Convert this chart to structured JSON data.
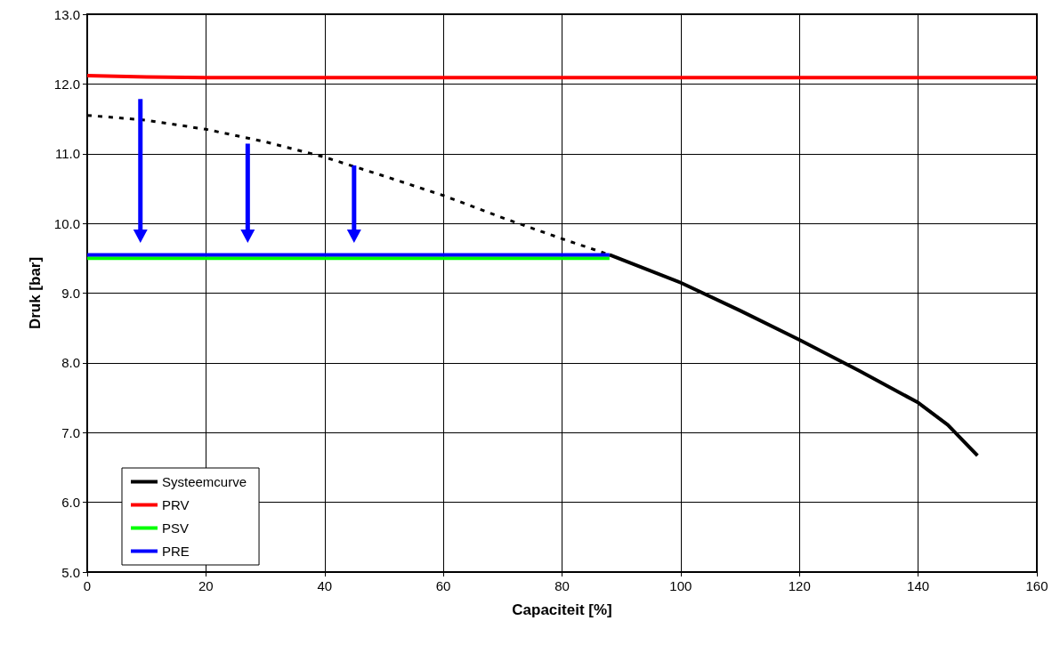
{
  "chart_data": {
    "type": "line",
    "xlabel": "Capaciteit [%]",
    "ylabel": "Druk [bar]",
    "xlim": [
      0,
      160
    ],
    "xticks": [
      0,
      20,
      40,
      60,
      80,
      100,
      120,
      140,
      160
    ],
    "ylim": [
      5,
      13
    ],
    "yticks": [
      {
        "value": 5,
        "label": "5.0"
      },
      {
        "value": 6,
        "label": "6.0"
      },
      {
        "value": 7,
        "label": "7.0"
      },
      {
        "value": 8,
        "label": "8.0"
      },
      {
        "value": 9,
        "label": "9.0"
      },
      {
        "value": 10,
        "label": "10.0"
      },
      {
        "value": 11,
        "label": "11.0"
      },
      {
        "value": 12,
        "label": "12.0"
      },
      {
        "value": 13,
        "label": "13.0"
      }
    ],
    "grid": true,
    "legend": "bottom left",
    "marker": "none",
    "series": [
      {
        "name": "Systeemcurve",
        "color": "#000000",
        "line_style": "solid",
        "x": [
          88,
          100,
          110,
          120,
          130,
          140,
          145,
          150
        ],
        "values": [
          9.55,
          9.15,
          8.75,
          8.33,
          7.89,
          7.43,
          7.11,
          6.67
        ]
      },
      {
        "color": "#000000",
        "line_style": "dashed",
        "x": [
          0,
          10,
          20,
          30,
          40,
          50,
          60,
          70,
          80,
          88
        ],
        "values": [
          11.55,
          11.48,
          11.35,
          11.17,
          10.95,
          10.68,
          10.4,
          10.08,
          9.78,
          9.55
        ]
      },
      {
        "name": "PRV",
        "color": "#ff0000",
        "line_style": "solid",
        "x": [
          0,
          10,
          20,
          160
        ],
        "values": [
          12.12,
          12.1,
          12.09,
          12.09
        ]
      },
      {
        "name": "PSV",
        "color": "#00ff00",
        "line_style": "solid",
        "x": [
          0,
          88
        ],
        "values": [
          9.5,
          9.5
        ]
      },
      {
        "name": "PRE",
        "color": "#0000ff",
        "line_style": "solid",
        "x": [
          0,
          88
        ],
        "values": [
          9.55,
          9.55
        ]
      }
    ]
  }
}
